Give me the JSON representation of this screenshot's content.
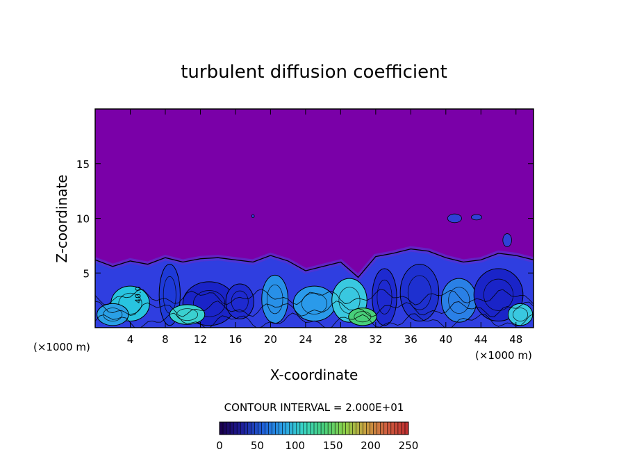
{
  "chart_data": {
    "type": "heatmap",
    "title": "turbulent diffusion coefficient",
    "xlabel": "X-coordinate",
    "ylabel": "Z-coordinate",
    "x_unit": "(×1000 m)",
    "z_unit": "(×1000 m)",
    "xlim": [
      0,
      50
    ],
    "ylim": [
      0,
      20
    ],
    "x_ticks": [
      "4",
      "8",
      "12",
      "16",
      "20",
      "24",
      "28",
      "32",
      "36",
      "40",
      "44",
      "48"
    ],
    "y_ticks": [
      "5",
      "10",
      "15"
    ],
    "contour_interval_label": "CONTOUR INTERVAL = 2.000E+01",
    "contour_label_inline": "40.0",
    "colorbar": {
      "min": 0,
      "max": 250,
      "ticks": [
        "0",
        "50",
        "100",
        "150",
        "200",
        "250"
      ],
      "colors": [
        "#1a0050",
        "#1e1e9a",
        "#1f5fd8",
        "#2aa0e6",
        "#39d6c4",
        "#48d07a",
        "#8ed048",
        "#c8a040",
        "#d06040",
        "#c03030"
      ]
    },
    "background_color": "#7a00a8",
    "turbulent_layer_top_profile": {
      "x": [
        0,
        2,
        4,
        6,
        8,
        10,
        12,
        14,
        16,
        18,
        20,
        22,
        24,
        26,
        28,
        30,
        32,
        34,
        36,
        38,
        40,
        42,
        44,
        46,
        48,
        50
      ],
      "z": [
        6.2,
        5.6,
        6.1,
        5.8,
        6.4,
        6.0,
        6.3,
        6.4,
        6.2,
        6.0,
        6.6,
        6.1,
        5.2,
        5.6,
        6.0,
        4.6,
        6.5,
        6.8,
        7.2,
        7.0,
        6.4,
        6.0,
        6.2,
        6.8,
        6.6,
        6.2
      ]
    }
  }
}
